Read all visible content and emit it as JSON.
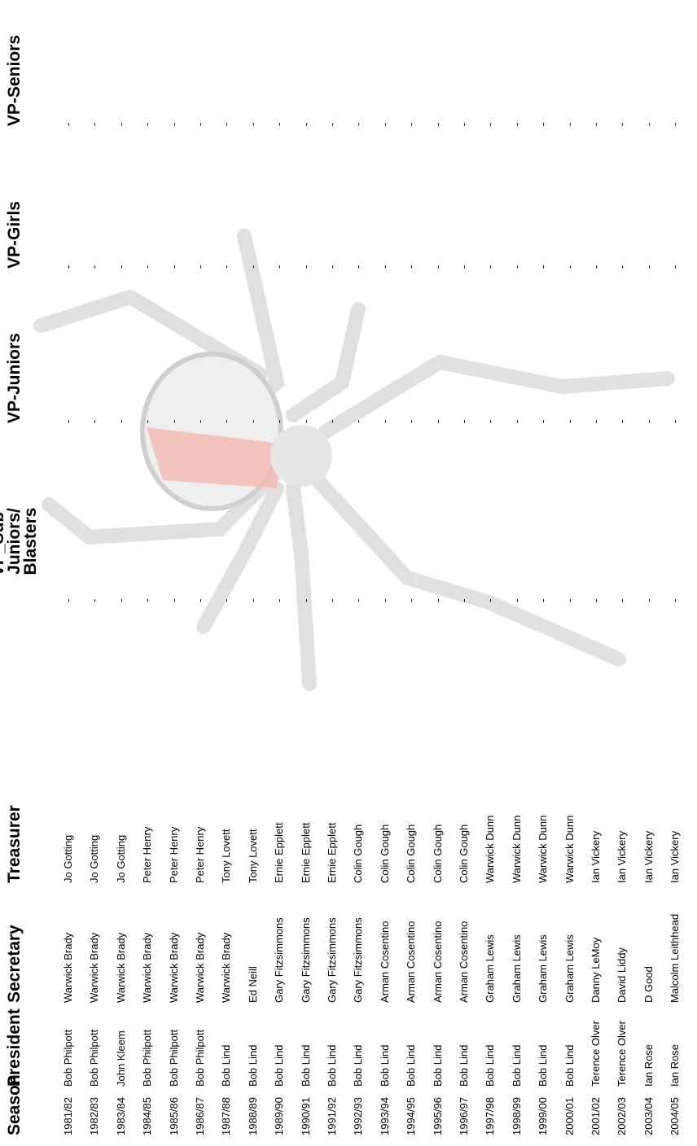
{
  "table": {
    "headers": [
      "Season",
      "President",
      "Secretary",
      "Treasurer",
      "VP_Sub-Juniors/ Blasters",
      "VP-Juniors",
      "VP-Girls",
      "VP-Seniors"
    ],
    "rows": [
      [
        "1981/82",
        "Bob Philpott",
        "Warwick Brady",
        "Jo Gotting",
        "-",
        "-",
        "-",
        "-"
      ],
      [
        "1982/83",
        "Bob Philpott",
        "Warwick Brady",
        "Jo Gotting",
        "-",
        "-",
        "-",
        "-"
      ],
      [
        "1983/84",
        "John Kleem",
        "Warwick Brady",
        "Jo Gotting",
        "-",
        "-",
        "-",
        "-"
      ],
      [
        "1984/85",
        "Bob Philpott",
        "Warwick Brady",
        "Peter Henry",
        "-",
        "-",
        "-",
        "-"
      ],
      [
        "1985/86",
        "Bob Philpott",
        "Warwick Brady",
        "Peter Henry",
        "-",
        "-",
        "-",
        "-"
      ],
      [
        "1986/87",
        "Bob Philpott",
        "Warwick Brady",
        "Peter Henry",
        "-",
        "-",
        "-",
        "-"
      ],
      [
        "1987/88",
        "Bob Lind",
        "Warwick Brady",
        "Tony Lovett",
        "-",
        "-",
        "-",
        "-"
      ],
      [
        "1988/89",
        "Bob Lind",
        "Ed Neill",
        "Tony Lovett",
        "-",
        "-",
        "-",
        "-"
      ],
      [
        "1989/90",
        "Bob Lind",
        "Gary Fitzsimmons",
        "Ernie Epplett",
        "-",
        "-",
        "-",
        "-"
      ],
      [
        "1990/91",
        "Bob Lind",
        "Gary Fitzsimmons",
        "Ernie Epplett",
        "-",
        "-",
        "-",
        "-"
      ],
      [
        "1991/92",
        "Bob Lind",
        "Gary Fitzsimmons",
        "Ernie Epplett",
        "-",
        "-",
        "-",
        "-"
      ],
      [
        "1992/93",
        "Bob Lind",
        "Gary Fitzsimmons",
        "Colin Gough",
        "-",
        "-",
        "-",
        "-"
      ],
      [
        "1993/94",
        "Bob Lind",
        "Arman Cosentino",
        "Colin Gough",
        "-",
        "-",
        "-",
        "-"
      ],
      [
        "1994/95",
        "Bob Lind",
        "Arman Cosentino",
        "Colin Gough",
        "-",
        "-",
        "-",
        "-"
      ],
      [
        "1995/96",
        "Bob Lind",
        "Arman Cosentino",
        "Colin Gough",
        "-",
        "-",
        "-",
        "-"
      ],
      [
        "1996/97",
        "Bob Lind",
        "Arman Cosentino",
        "Colin Gough",
        "-",
        "-",
        "-",
        "-"
      ],
      [
        "1997/98",
        "Bob Lind",
        "Graham Lewis",
        "Warwick Dunn",
        "-",
        "-",
        "-",
        "-"
      ],
      [
        "1998/99",
        "Bob Lind",
        "Graham Lewis",
        "Warwick Dunn",
        "-",
        "-",
        "-",
        "-"
      ],
      [
        "1999/00",
        "Bob Lind",
        "Graham Lewis",
        "Warwick Dunn",
        "-",
        "-",
        "-",
        "-"
      ],
      [
        "2000/01",
        "Bob Lind",
        "Graham Lewis",
        "Warwick Dunn",
        "-",
        "-",
        "-",
        "-"
      ],
      [
        "2001/02",
        "Terence Olver",
        "Danny LeMoy",
        "Ian Vickery",
        "-",
        "-",
        "-",
        "-"
      ],
      [
        "2002/03",
        "Terence Olver",
        "David Liddy",
        "Ian Vickery",
        "-",
        "-",
        "-",
        "-"
      ],
      [
        "2003/04",
        "Ian Rose",
        "D Good",
        "Ian Vickery",
        "-",
        "-",
        "-",
        "-"
      ],
      [
        "2004/05",
        "Ian Rose",
        "Malcolm Leithhead",
        "Ian Vickery",
        "-",
        "-",
        "-",
        "-"
      ]
    ]
  }
}
